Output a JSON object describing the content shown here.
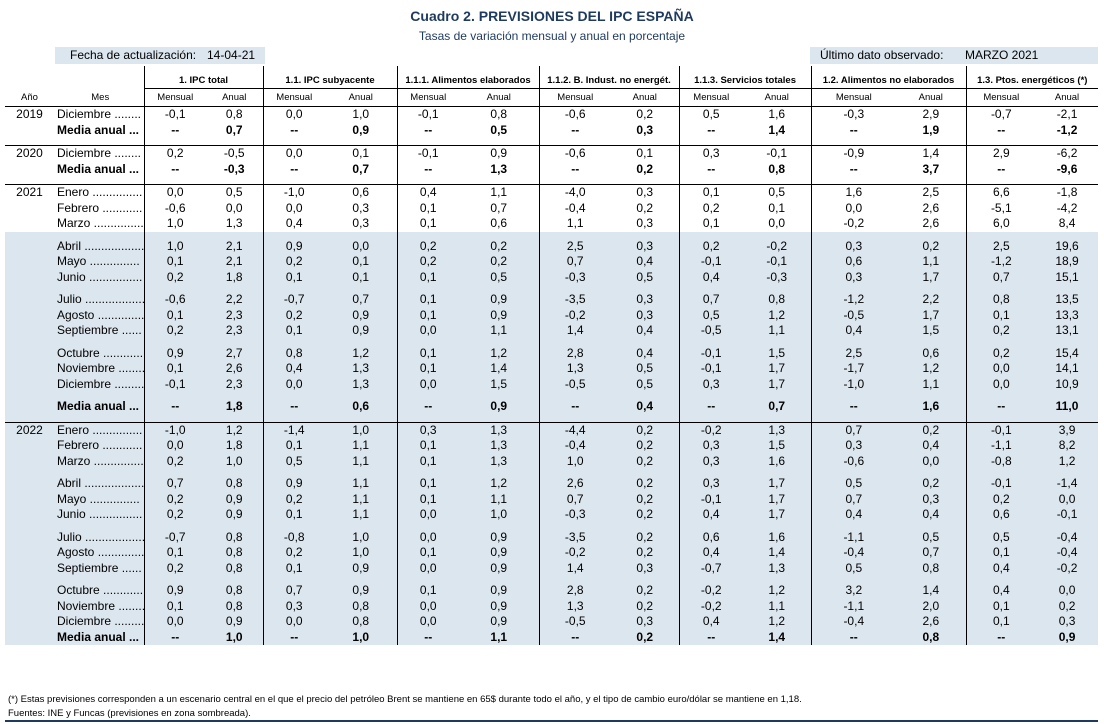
{
  "title": "Cuadro 2. PREVISIONES DEL IPC ESPAÑA",
  "subtitle": "Tasas de variación mensual y anual en porcentaje",
  "info": {
    "fecha_label": "Fecha de actualización:",
    "fecha_value": "14-04-21",
    "ultimo_label": "Último dato observado:",
    "ultimo_value": "MARZO 2021"
  },
  "headers": {
    "year": "Año",
    "month": "Mes",
    "groups": [
      "1. IPC total",
      "1.1. IPC subyacente",
      "1.1.1. Alimentos elaborados",
      "1.1.2. B. Indust. no energét.",
      "1.1.3. Servicios totales",
      "1.2. Alimentos no elaborados",
      "1.3. Ptos. energéticos (*)"
    ],
    "mensual": "Mensual",
    "anual": "Anual"
  },
  "rows": [
    {
      "year": "2019",
      "mes": "Diciembre ........",
      "v": [
        "-0,1",
        "0,8",
        "0,0",
        "1,0",
        "-0,1",
        "0,8",
        "-0,6",
        "0,2",
        "0,5",
        "1,6",
        "-0,3",
        "2,9",
        "-0,7",
        "-2,1"
      ]
    },
    {
      "year": "",
      "mes": "Media anual ...",
      "bold": true,
      "v": [
        "--",
        "0,7",
        "--",
        "0,9",
        "--",
        "0,5",
        "--",
        "0,3",
        "--",
        "1,4",
        "--",
        "1,9",
        "--",
        "-1,2"
      ]
    },
    {
      "year": "2020",
      "mes": "Diciembre ........",
      "v": [
        "0,2",
        "-0,5",
        "0,0",
        "0,1",
        "-0,1",
        "0,9",
        "-0,6",
        "0,1",
        "0,3",
        "-0,1",
        "-0,9",
        "1,4",
        "2,9",
        "-6,2"
      ]
    },
    {
      "year": "",
      "mes": "Media anual ...",
      "bold": true,
      "v": [
        "--",
        "-0,3",
        "--",
        "0,7",
        "--",
        "1,3",
        "--",
        "0,2",
        "--",
        "0,8",
        "--",
        "3,7",
        "--",
        "-9,6"
      ]
    },
    {
      "year": "2021",
      "mes": "Enero ...............",
      "v": [
        "0,0",
        "0,5",
        "-1,0",
        "0,6",
        "0,4",
        "1,1",
        "-4,0",
        "0,3",
        "0,1",
        "0,5",
        "1,6",
        "2,5",
        "6,6",
        "-1,8"
      ]
    },
    {
      "year": "",
      "mes": "Febrero ............",
      "v": [
        "-0,6",
        "0,0",
        "0,0",
        "0,3",
        "0,1",
        "0,7",
        "-0,4",
        "0,2",
        "0,2",
        "0,1",
        "0,0",
        "2,6",
        "-5,1",
        "-4,2"
      ]
    },
    {
      "year": "",
      "mes": "Marzo ...............",
      "v": [
        "1,0",
        "1,3",
        "0,4",
        "0,3",
        "0,1",
        "0,6",
        "1,1",
        "0,3",
        "0,1",
        "0,0",
        "-0,2",
        "2,6",
        "6,0",
        "8,4"
      ]
    },
    {
      "year": "",
      "mes": "Abril ..................",
      "shade": true,
      "v": [
        "1,0",
        "2,1",
        "0,9",
        "0,0",
        "0,2",
        "0,2",
        "2,5",
        "0,3",
        "0,2",
        "-0,2",
        "0,3",
        "0,2",
        "2,5",
        "19,6"
      ]
    },
    {
      "year": "",
      "mes": "Mayo ...............",
      "shade": true,
      "v": [
        "0,1",
        "2,1",
        "0,2",
        "0,1",
        "0,2",
        "0,2",
        "0,7",
        "0,4",
        "-0,1",
        "-0,1",
        "0,6",
        "1,1",
        "-1,2",
        "18,9"
      ]
    },
    {
      "year": "",
      "mes": "Junio ................",
      "shade": true,
      "v": [
        "0,2",
        "1,8",
        "0,1",
        "0,1",
        "0,1",
        "0,5",
        "-0,3",
        "0,5",
        "0,4",
        "-0,3",
        "0,3",
        "1,7",
        "0,7",
        "15,1"
      ]
    },
    {
      "year": "",
      "mes": "Julio ..................",
      "shade": true,
      "v": [
        "-0,6",
        "2,2",
        "-0,7",
        "0,7",
        "0,1",
        "0,9",
        "-3,5",
        "0,3",
        "0,7",
        "0,8",
        "-1,2",
        "2,2",
        "0,8",
        "13,5"
      ]
    },
    {
      "year": "",
      "mes": "Agosto ..............",
      "shade": true,
      "v": [
        "0,1",
        "2,3",
        "0,2",
        "0,9",
        "0,1",
        "0,9",
        "-0,2",
        "0,3",
        "0,5",
        "1,2",
        "-0,5",
        "1,7",
        "0,1",
        "13,3"
      ]
    },
    {
      "year": "",
      "mes": "Septiembre ......",
      "shade": true,
      "v": [
        "0,2",
        "2,3",
        "0,1",
        "0,9",
        "0,0",
        "1,1",
        "1,4",
        "0,4",
        "-0,5",
        "1,1",
        "0,4",
        "1,5",
        "0,2",
        "13,1"
      ]
    },
    {
      "year": "",
      "mes": "Octubre ............",
      "shade": true,
      "v": [
        "0,9",
        "2,7",
        "0,8",
        "1,2",
        "0,1",
        "1,2",
        "2,8",
        "0,4",
        "-0,1",
        "1,5",
        "2,5",
        "0,6",
        "0,2",
        "15,4"
      ]
    },
    {
      "year": "",
      "mes": "Noviembre .........",
      "shade": true,
      "v": [
        "0,1",
        "2,6",
        "0,4",
        "1,3",
        "0,1",
        "1,4",
        "1,3",
        "0,5",
        "-0,1",
        "1,7",
        "-1,7",
        "1,2",
        "0,0",
        "14,1"
      ]
    },
    {
      "year": "",
      "mes": "Diciembre ..........",
      "shade": true,
      "v": [
        "-0,1",
        "2,3",
        "0,0",
        "1,3",
        "0,0",
        "1,5",
        "-0,5",
        "0,5",
        "0,3",
        "1,7",
        "-1,0",
        "1,1",
        "0,0",
        "10,9"
      ]
    },
    {
      "year": "",
      "mes": "Media anual ...",
      "shade": true,
      "bold": true,
      "v": [
        "--",
        "1,8",
        "--",
        "0,6",
        "--",
        "0,9",
        "--",
        "0,4",
        "--",
        "0,7",
        "--",
        "1,6",
        "--",
        "11,0"
      ]
    },
    {
      "year": "2022",
      "mes": "Enero ...............",
      "shade": true,
      "v": [
        "-1,0",
        "1,2",
        "-1,4",
        "1,0",
        "0,3",
        "1,3",
        "-4,4",
        "0,2",
        "-0,2",
        "1,3",
        "0,7",
        "0,2",
        "-0,1",
        "3,9"
      ]
    },
    {
      "year": "",
      "mes": "Febrero ............",
      "shade": true,
      "v": [
        "0,0",
        "1,8",
        "0,1",
        "1,1",
        "0,1",
        "1,3",
        "-0,4",
        "0,2",
        "0,3",
        "1,5",
        "0,3",
        "0,4",
        "-1,1",
        "8,2"
      ]
    },
    {
      "year": "",
      "mes": "Marzo ...............",
      "shade": true,
      "v": [
        "0,2",
        "1,0",
        "0,5",
        "1,1",
        "0,1",
        "1,3",
        "1,0",
        "0,2",
        "0,3",
        "1,6",
        "-0,6",
        "0,0",
        "-0,8",
        "1,2"
      ]
    },
    {
      "year": "",
      "mes": "Abril ..................",
      "shade": true,
      "v": [
        "0,7",
        "0,8",
        "0,9",
        "1,1",
        "0,1",
        "1,2",
        "2,6",
        "0,2",
        "0,3",
        "1,7",
        "0,5",
        "0,2",
        "-0,1",
        "-1,4"
      ]
    },
    {
      "year": "",
      "mes": "Mayo ...............",
      "shade": true,
      "v": [
        "0,2",
        "0,9",
        "0,2",
        "1,1",
        "0,1",
        "1,1",
        "0,7",
        "0,2",
        "-0,1",
        "1,7",
        "0,7",
        "0,3",
        "0,2",
        "0,0"
      ]
    },
    {
      "year": "",
      "mes": "Junio ................",
      "shade": true,
      "v": [
        "0,2",
        "0,9",
        "0,1",
        "1,1",
        "0,0",
        "1,0",
        "-0,3",
        "0,2",
        "0,4",
        "1,7",
        "0,4",
        "0,4",
        "0,6",
        "-0,1"
      ]
    },
    {
      "year": "",
      "mes": "Julio ..................",
      "shade": true,
      "v": [
        "-0,7",
        "0,8",
        "-0,8",
        "1,0",
        "0,0",
        "0,9",
        "-3,5",
        "0,2",
        "0,6",
        "1,6",
        "-1,1",
        "0,5",
        "0,5",
        "-0,4"
      ]
    },
    {
      "year": "",
      "mes": "Agosto ..............",
      "shade": true,
      "v": [
        "0,1",
        "0,8",
        "0,2",
        "1,0",
        "0,1",
        "0,9",
        "-0,2",
        "0,2",
        "0,4",
        "1,4",
        "-0,4",
        "0,7",
        "0,1",
        "-0,4"
      ]
    },
    {
      "year": "",
      "mes": "Septiembre ......",
      "shade": true,
      "v": [
        "0,2",
        "0,8",
        "0,1",
        "0,9",
        "0,0",
        "0,9",
        "1,4",
        "0,3",
        "-0,7",
        "1,3",
        "0,5",
        "0,8",
        "0,4",
        "-0,2"
      ]
    },
    {
      "year": "",
      "mes": "Octubre ............",
      "shade": true,
      "v": [
        "0,9",
        "0,8",
        "0,7",
        "0,9",
        "0,1",
        "0,9",
        "2,8",
        "0,2",
        "-0,2",
        "1,2",
        "3,2",
        "1,4",
        "0,4",
        "0,0"
      ]
    },
    {
      "year": "",
      "mes": "Noviembre .........",
      "shade": true,
      "v": [
        "0,1",
        "0,8",
        "0,3",
        "0,8",
        "0,0",
        "0,9",
        "1,3",
        "0,2",
        "-0,2",
        "1,1",
        "-1,1",
        "2,0",
        "0,1",
        "0,2"
      ]
    },
    {
      "year": "",
      "mes": "Diciembre ..........",
      "shade": true,
      "v": [
        "0,0",
        "0,9",
        "0,0",
        "0,8",
        "0,0",
        "0,9",
        "-0,5",
        "0,3",
        "0,4",
        "1,2",
        "-0,4",
        "2,6",
        "0,1",
        "0,3"
      ]
    },
    {
      "year": "",
      "mes": "Media anual ...",
      "shade": true,
      "bold": true,
      "v": [
        "--",
        "1,0",
        "--",
        "1,0",
        "--",
        "1,1",
        "--",
        "0,2",
        "--",
        "1,4",
        "--",
        "0,8",
        "--",
        "0,9"
      ]
    }
  ],
  "footer": {
    "note": "(*) Estas previsiones corresponden a un escenario central en el que el precio del petróleo Brent se mantiene en 65$ durante todo el año, y el tipo de cambio euro/dólar se mantiene en 1,18.",
    "sources": "Fuentes: INE y Funcas (previsiones en zona sombreada)."
  }
}
